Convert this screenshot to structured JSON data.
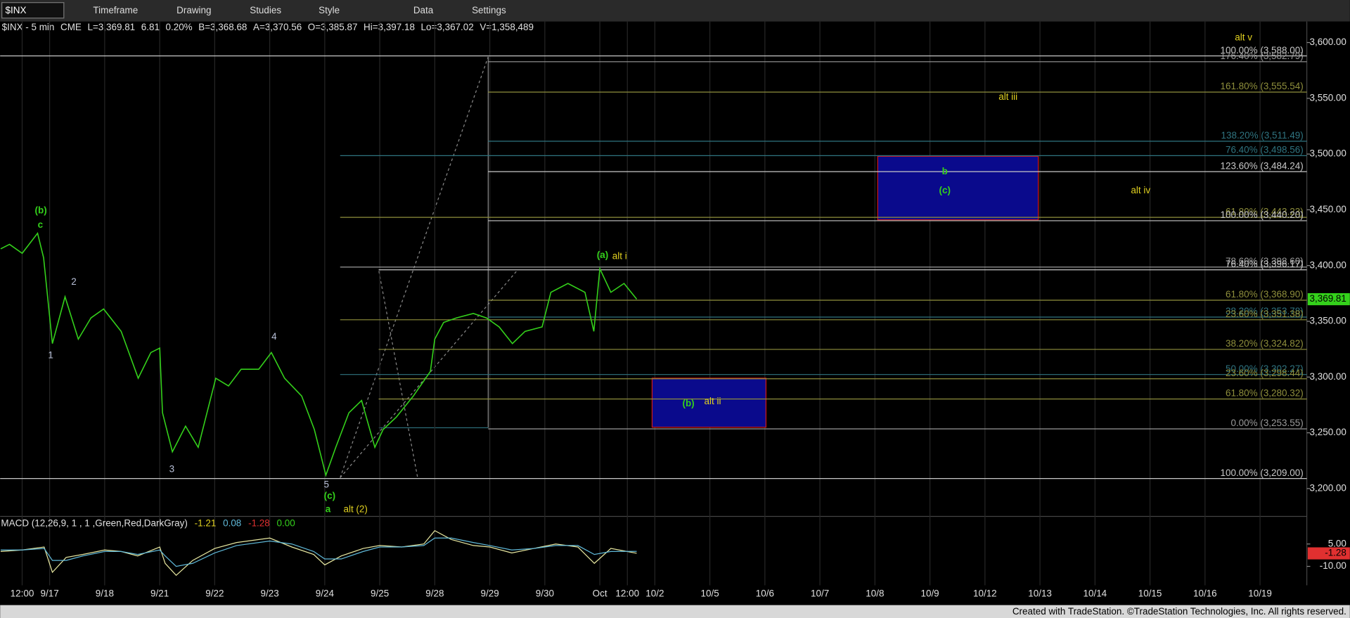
{
  "toolbar": {
    "symbol": "$INX",
    "items": [
      "Timeframe",
      "Drawing",
      "Studies",
      "Style",
      "Data",
      "Settings"
    ]
  },
  "quote": [
    "$INX - 5 min",
    "CME",
    "L=3,369.81",
    "6.81",
    "0.20%",
    "B=3,368.68",
    "A=3,370.56",
    "O=3,385.87",
    "Hi=3,397.18",
    "Lo=3,367.02",
    "V=1,358,489"
  ],
  "footer": "Created with TradeStation. ©TradeStation Technologies, Inc. All rights reserved.",
  "chart_data": [
    {
      "type": "line",
      "color": "#34d11b",
      "xlim": [
        -0.9,
        22.85
      ],
      "ylim": [
        3175,
        3615
      ],
      "grid": "x",
      "xticks": [
        {
          "value": -0.5,
          "label": "12:00"
        },
        {
          "value": 0,
          "label": "9/17"
        },
        {
          "value": 1,
          "label": "9/18"
        },
        {
          "value": 2,
          "label": "9/21"
        },
        {
          "value": 3,
          "label": "9/22"
        },
        {
          "value": 4,
          "label": "9/23"
        },
        {
          "value": 5,
          "label": "9/24"
        },
        {
          "value": 6,
          "label": "9/25"
        },
        {
          "value": 7,
          "label": "9/28"
        },
        {
          "value": 8,
          "label": "9/29"
        },
        {
          "value": 9,
          "label": "9/30"
        },
        {
          "value": 10,
          "label": "Oct"
        },
        {
          "value": 10.5,
          "label": "12:00"
        },
        {
          "value": 11,
          "label": "10/2"
        },
        {
          "value": 12,
          "label": "10/5"
        },
        {
          "value": 13,
          "label": "10/6"
        },
        {
          "value": 14,
          "label": "10/7"
        },
        {
          "value": 15,
          "label": "10/8"
        },
        {
          "value": 16,
          "label": "10/9"
        },
        {
          "value": 17,
          "label": "10/12"
        },
        {
          "value": 18,
          "label": "10/13"
        },
        {
          "value": 19,
          "label": "10/14"
        },
        {
          "value": 20,
          "label": "10/15"
        },
        {
          "value": 21,
          "label": "10/16"
        },
        {
          "value": 22,
          "label": "10/19"
        }
      ],
      "yticks": [
        {
          "value": 3200,
          "label": "3,200.00"
        },
        {
          "value": 3250,
          "label": "3,250.00"
        },
        {
          "value": 3300,
          "label": "3,300.00"
        },
        {
          "value": 3350,
          "label": "3,350.00"
        },
        {
          "value": 3400,
          "label": "3,400.00"
        },
        {
          "value": 3450,
          "label": "3,450.00"
        },
        {
          "value": 3500,
          "label": "3,500.00"
        },
        {
          "value": 3550,
          "label": "3,550.00"
        },
        {
          "value": 3600,
          "label": "3,600.00"
        }
      ],
      "x": [
        -0.89,
        -0.73,
        -0.5,
        -0.22,
        -0.11,
        0.05,
        0.28,
        0.52,
        0.75,
        0.98,
        1.3,
        1.61,
        1.84,
        2.0,
        2.05,
        2.23,
        2.47,
        2.7,
        3.02,
        3.25,
        3.48,
        3.8,
        4.03,
        4.27,
        4.58,
        4.81,
        5.02,
        5.2,
        5.44,
        5.67,
        5.91,
        6.06,
        6.3,
        6.61,
        6.92,
        7.0,
        7.16,
        7.39,
        7.7,
        7.94,
        8.17,
        8.41,
        8.64,
        8.95,
        9.11,
        9.42,
        9.73,
        9.89,
        10.0,
        10.2,
        10.44,
        10.67
      ],
      "values": [
        3415,
        3419,
        3411,
        3429,
        3407,
        3330,
        3372,
        3334,
        3353,
        3361,
        3341,
        3299,
        3322,
        3326,
        3268,
        3233,
        3256,
        3237,
        3299,
        3292,
        3307,
        3307,
        3322,
        3299,
        3283,
        3253,
        3212,
        3237,
        3268,
        3279,
        3237,
        3253,
        3264,
        3283,
        3305,
        3334,
        3349,
        3353,
        3357,
        3353,
        3345,
        3330,
        3341,
        3345,
        3376,
        3384,
        3376,
        3341,
        3397.18,
        3376,
        3384,
        3369.81
      ],
      "last_price": {
        "value": 3369.81,
        "label": "3,369.81"
      },
      "fib_levels": [
        {
          "label": "100.00% (3,588.00)",
          "value": 3588,
          "from": -0.9,
          "color": "#c8c8c8"
        },
        {
          "label": "176.40% (3,582.79)",
          "value": 3582.79,
          "from": 7.97,
          "color": "#9a9a9a"
        },
        {
          "label": "161.80% (3,555.54)",
          "value": 3555.54,
          "from": 7.97,
          "color": "#8f8f3c"
        },
        {
          "label": "138.20% (3,511.49)",
          "value": 3511.49,
          "from": 7.97,
          "color": "#2f7480"
        },
        {
          "label": "76.40% (3,498.56)",
          "value": 3498.56,
          "from": 5.28,
          "color": "#2f7480"
        },
        {
          "label": "123.60% (3,484.24)",
          "value": 3484.24,
          "from": 7.97,
          "color": "#c8c8c8"
        },
        {
          "label": "61.80% (3,443.23)",
          "value": 3443.23,
          "from": 5.28,
          "color": "#8f8f3c"
        },
        {
          "label": "100.00% (3,440.20)",
          "value": 3440.2,
          "from": 7.97,
          "color": "#c8c8c8"
        },
        {
          "label": "78.60% (3,398.60)",
          "value": 3398.6,
          "from": 5.28,
          "color": "#9a9a9a"
        },
        {
          "label": "76.40% (3,396.17)",
          "value": 3396.17,
          "from": 5.98,
          "color": "#c8c8c8"
        },
        {
          "label": "61.80% (3,368.90)",
          "value": 3368.9,
          "from": 7.97,
          "color": "#8f8f3c"
        },
        {
          "label": "38.20% (3,353.78)",
          "value": 3353.78,
          "from": 7.97,
          "color": "#2f7480"
        },
        {
          "label": "23.60% (3,351.38)",
          "value": 3351.38,
          "from": 5.28,
          "color": "#8f8f3c"
        },
        {
          "label": "38.20% (3,324.82)",
          "value": 3324.82,
          "from": 5.98,
          "color": "#8f8f3c"
        },
        {
          "label": "50.00% (3,302.27)",
          "value": 3302.27,
          "from": 5.28,
          "color": "#2f7480"
        },
        {
          "label": "23.60% (3,298.44)",
          "value": 3298.44,
          "from": 5.98,
          "color": "#8f8f3c"
        },
        {
          "label": "61.80% (3,280.32)",
          "value": 3280.32,
          "from": 5.98,
          "color": "#8f8f3c"
        },
        {
          "label": "0.00% (3,253.55)",
          "value": 3253.55,
          "from": 7.97,
          "color": "#9a9a9a"
        },
        {
          "label": "100.00% (3,209.00)",
          "value": 3209,
          "from": -0.9,
          "color": "#c8c8c8"
        }
      ],
      "zones": [
        {
          "low": 3441,
          "high": 3498,
          "from": 15.05,
          "to": 17.97,
          "color": "#0a0a8c",
          "border": "#d01818"
        },
        {
          "low": 3255,
          "high": 3299,
          "from": 10.95,
          "to": 13.02,
          "color": "#0a0a8c",
          "border": "#d01818"
        }
      ],
      "annotations": [
        {
          "text": "(b)",
          "x": -0.16,
          "y": 3449,
          "color": "#34d11b"
        },
        {
          "text": "c",
          "x": -0.17,
          "y": 3436,
          "color": "#34d11b"
        },
        {
          "text": "1",
          "x": 0.02,
          "y": 3319,
          "color": "#b8c0d8"
        },
        {
          "text": "2",
          "x": 0.44,
          "y": 3385,
          "color": "#b8c0d8"
        },
        {
          "text": "3",
          "x": 2.22,
          "y": 3217,
          "color": "#b8c0d8"
        },
        {
          "text": "4",
          "x": 4.08,
          "y": 3336,
          "color": "#b8c0d8"
        },
        {
          "text": "5",
          "x": 5.03,
          "y": 3203,
          "color": "#b8c0d8"
        },
        {
          "text": "(c)",
          "x": 5.09,
          "y": 3193,
          "color": "#34d11b"
        },
        {
          "text": "a",
          "x": 5.06,
          "y": 3181,
          "color": "#34d11b"
        },
        {
          "text": "alt (2)",
          "x": 5.56,
          "y": 3181,
          "color": "#e0d020"
        },
        {
          "text": "(a)",
          "x": 10.05,
          "y": 3409,
          "color": "#34d11b"
        },
        {
          "text": "alt i",
          "x": 10.36,
          "y": 3408,
          "color": "#e0d020"
        },
        {
          "text": "(b)",
          "x": 11.61,
          "y": 3276,
          "color": "#34d11b"
        },
        {
          "text": "alt ii",
          "x": 12.05,
          "y": 3278,
          "color": "#e0d020"
        },
        {
          "text": "b",
          "x": 16.27,
          "y": 3484,
          "color": "#34d11b"
        },
        {
          "text": "(c)",
          "x": 16.27,
          "y": 3467,
          "color": "#34d11b"
        },
        {
          "text": "alt iii",
          "x": 17.42,
          "y": 3551,
          "color": "#e0d020"
        },
        {
          "text": "alt iv",
          "x": 19.83,
          "y": 3467,
          "color": "#e0d020"
        },
        {
          "text": "alt v",
          "x": 21.7,
          "y": 3604,
          "color": "#e0d020"
        }
      ]
    },
    {
      "type": "line",
      "title": "MACD (12,26,9, 1 , 1 ,Green,Red,DarkGray)",
      "readings": [
        -1.21,
        0.08,
        -1.28,
        {
          "value": 0,
          "label": "0.00"
        }
      ],
      "reading_colors": [
        "#e0d020",
        "#5fb8d8",
        "#e03030",
        "#34d11b"
      ],
      "xlim": [
        -0.9,
        22.85
      ],
      "ylim": [
        -22.7,
        23.5
      ],
      "yticks": [
        {
          "value": 5,
          "label": "5.00"
        },
        {
          "value": -10,
          "label": "-10.00"
        }
      ],
      "x": [
        -0.89,
        -0.5,
        -0.1,
        0.05,
        0.3,
        0.6,
        1.0,
        1.3,
        1.6,
        2.0,
        2.1,
        2.3,
        2.6,
        3.0,
        3.4,
        4.0,
        4.4,
        4.8,
        5.0,
        5.3,
        5.7,
        6.0,
        6.4,
        6.8,
        7.0,
        7.3,
        7.7,
        8.0,
        8.4,
        8.8,
        9.2,
        9.6,
        9.9,
        10.2,
        10.67
      ],
      "series": [
        {
          "color": "#e8e8a0",
          "values": [
            0,
            1,
            3,
            -14,
            -4,
            -2,
            1,
            0,
            -3,
            3,
            -8,
            -16,
            -6,
            2,
            6,
            9,
            3,
            -2,
            -9,
            -3,
            2,
            4,
            3,
            5,
            14,
            8,
            4,
            3,
            -1,
            2,
            5,
            3,
            -8,
            2,
            -1.21
          ]
        },
        {
          "color": "#5fb8d8",
          "values": [
            1,
            1,
            2,
            -6,
            -6,
            -3,
            0,
            0,
            -2,
            1,
            -3,
            -10,
            -8,
            -1,
            4,
            7,
            5,
            0,
            -5,
            -5,
            0,
            3,
            3,
            4,
            9,
            9,
            6,
            4,
            1,
            2,
            4,
            4,
            -2,
            0,
            0.08
          ]
        }
      ]
    }
  ]
}
